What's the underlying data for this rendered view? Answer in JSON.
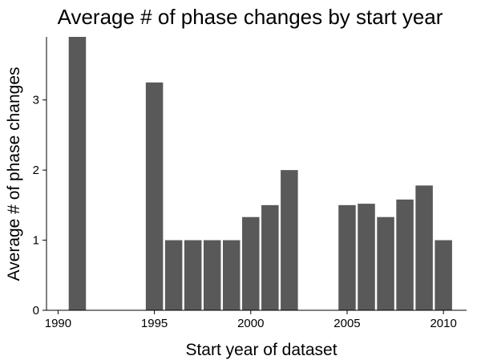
{
  "chart_data": {
    "type": "bar",
    "title": "Average # of phase changes by start year",
    "xlabel": "Start year of dataset",
    "ylabel": "Average # of phase changes",
    "x": [
      1991,
      1995,
      1996,
      1997,
      1998,
      1999,
      2000,
      2001,
      2002,
      2005,
      2006,
      2007,
      2008,
      2009,
      2010
    ],
    "values": [
      3.9,
      3.25,
      1.0,
      1.0,
      1.0,
      1.0,
      1.33,
      1.5,
      2.0,
      1.5,
      1.52,
      1.33,
      1.58,
      1.78,
      1.0
    ],
    "xlim": [
      1989.4,
      2011.2
    ],
    "ylim": [
      0,
      3.9
    ],
    "xticks": [
      1990,
      1995,
      2000,
      2005,
      2010
    ],
    "yticks": [
      0,
      1,
      2,
      3
    ],
    "grid": false,
    "bar_color": "#595959",
    "axis_color": "#000000"
  }
}
